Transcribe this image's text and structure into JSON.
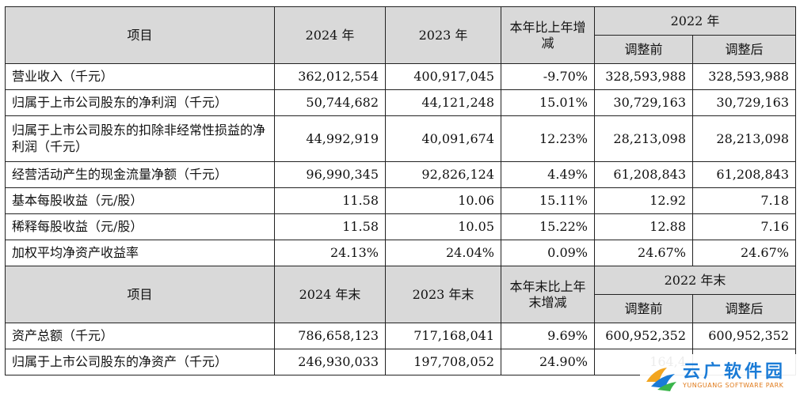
{
  "section1": {
    "header": {
      "item": "项目",
      "y2024": "2024 年",
      "y2023": "2023 年",
      "change": "本年比上年增减",
      "y2022": "2022 年",
      "before": "调整前",
      "after": "调整后"
    },
    "rows": [
      {
        "label": "营业收入（千元）",
        "v2024": "362,012,554",
        "v2023": "400,917,045",
        "change": "-9.70%",
        "before": "328,593,988",
        "after": "328,593,988"
      },
      {
        "label": "归属于上市公司股东的净利润（千元）",
        "v2024": "50,744,682",
        "v2023": "44,121,248",
        "change": "15.01%",
        "before": "30,729,163",
        "after": "30,729,163"
      },
      {
        "label": "归属于上市公司股东的扣除非经常性损益的净利润（千元）",
        "v2024": "44,992,919",
        "v2023": "40,091,674",
        "change": "12.23%",
        "before": "28,213,098",
        "after": "28,213,098"
      },
      {
        "label": "经营活动产生的现金流量净额（千元）",
        "v2024": "96,990,345",
        "v2023": "92,826,124",
        "change": "4.49%",
        "before": "61,208,843",
        "after": "61,208,843"
      },
      {
        "label": "基本每股收益（元/股）",
        "v2024": "11.58",
        "v2023": "10.06",
        "change": "15.11%",
        "before": "12.92",
        "after": "7.18"
      },
      {
        "label": "稀释每股收益（元/股）",
        "v2024": "11.58",
        "v2023": "10.05",
        "change": "15.22%",
        "before": "12.88",
        "after": "7.16"
      },
      {
        "label": "加权平均净资产收益率",
        "v2024": "24.13%",
        "v2023": "24.04%",
        "change": "0.09%",
        "before": "24.67%",
        "after": "24.67%"
      }
    ]
  },
  "section2": {
    "header": {
      "item": "项目",
      "y2024": "2024 年末",
      "y2023": "2023 年末",
      "change": "本年末比上年末增减",
      "y2022": "2022 年末",
      "before": "调整前",
      "after": "调整后"
    },
    "rows": [
      {
        "label": "资产总额（千元）",
        "v2024": "786,658,123",
        "v2023": "717,168,041",
        "change": "9.69%",
        "before": "600,952,352",
        "after": "600,952,352"
      },
      {
        "label": "归属于上市公司股东的净资产（千元）",
        "v2024": "246,930,033",
        "v2023": "197,708,052",
        "change": "24.90%",
        "before": "164,4",
        "after": ""
      }
    ]
  },
  "watermark": {
    "cn": "云广软件园",
    "en": "YUNGUANG SOFTWARE PARK"
  }
}
